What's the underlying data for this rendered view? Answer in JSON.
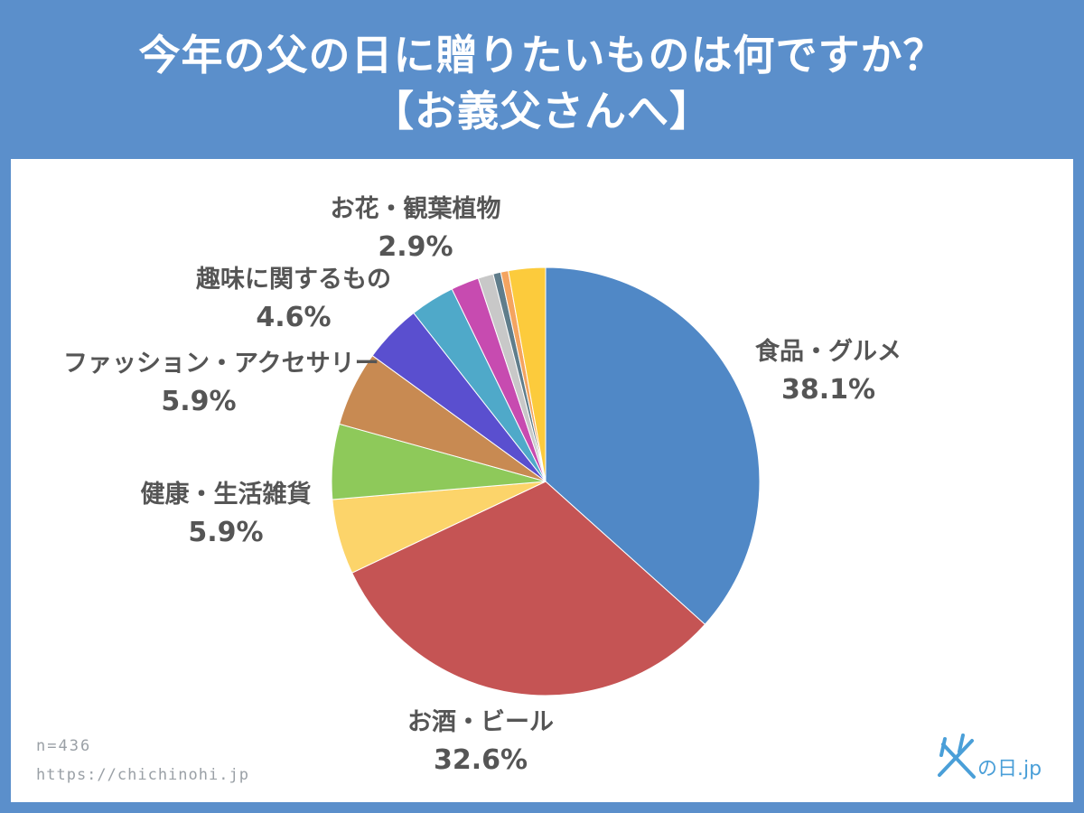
{
  "title": {
    "line1": "今年の父の日に贈りたいものは何ですか？",
    "line2": "【お義父さんへ】"
  },
  "footnote": {
    "sample": "n=436",
    "url": "https://chichinohi.jp"
  },
  "logo": {
    "text": "父の日.jp",
    "color": "#4a9fd8"
  },
  "chart_data": {
    "type": "pie",
    "start": "12 o'clock",
    "direction": "clockwise",
    "slices": [
      {
        "label": "食品・グルメ",
        "value": 38.1,
        "value_label": "38.1%",
        "color": "#5088c6"
      },
      {
        "label": "お酒・ビール",
        "value": 32.6,
        "value_label": "32.6%",
        "color": "#c55454"
      },
      {
        "label": "健康・生活雑貨",
        "value": 5.9,
        "value_label": "5.9%",
        "color": "#fcd46a"
      },
      {
        "label": "",
        "value": 5.9,
        "value_label": "",
        "color": "#8ec95a"
      },
      {
        "label": "ファッション・アクセサリー",
        "value": 5.9,
        "value_label": "5.9%",
        "color": "#c88a52"
      },
      {
        "label": "趣味に関するもの",
        "value": 4.6,
        "value_label": "4.6%",
        "color": "#5a4fcf"
      },
      {
        "label": "",
        "value": 3.5,
        "value_label": "",
        "color": "#4fa9c9"
      },
      {
        "label": "",
        "value": 2.2,
        "value_label": "",
        "color": "#c74bb0"
      },
      {
        "label": "",
        "value": 1.2,
        "value_label": "",
        "color": "#c8c8c8"
      },
      {
        "label": "",
        "value": 0.6,
        "value_label": "",
        "color": "#607d8b"
      },
      {
        "label": "",
        "value": 0.6,
        "value_label": "",
        "color": "#f4a460"
      },
      {
        "label": "お花・観葉植物",
        "value": 2.9,
        "value_label": "2.9%",
        "color": "#fccb3c"
      }
    ]
  }
}
